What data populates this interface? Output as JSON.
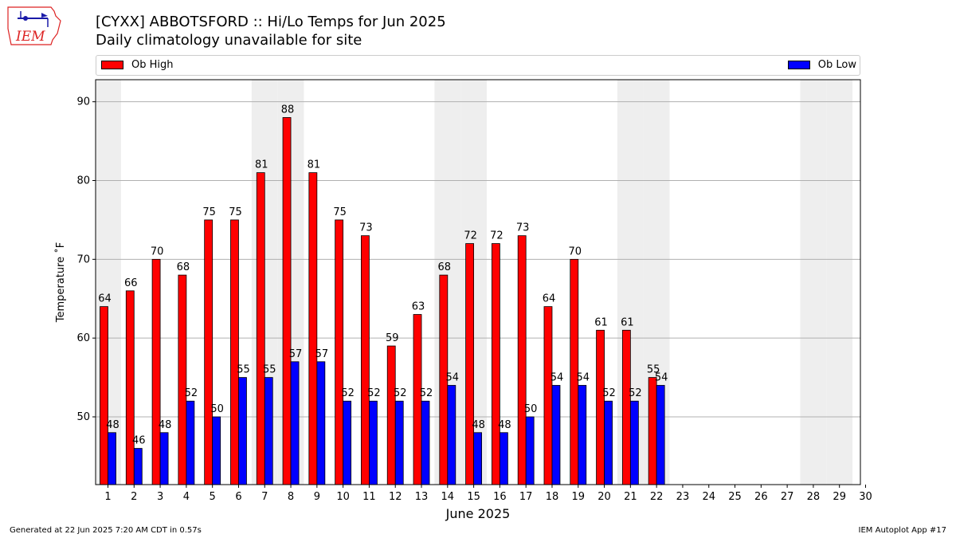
{
  "logo": {
    "text": "IEM",
    "icon": "iowa-state-weather-logo-icon"
  },
  "title": "[CYXX] ABBOTSFORD :: Hi/Lo Temps for Jun 2025",
  "subtitle": "Daily climatology unavailable for site",
  "footer": {
    "left": "Generated at 22 Jun 2025 7:20 AM CDT in 0.57s",
    "right": "IEM Autoplot App #17"
  },
  "chart_data": {
    "type": "bar",
    "title": "[CYXX] ABBOTSFORD :: Hi/Lo Temps for Jun 2025",
    "xlabel": "June 2025",
    "ylabel": "Temperature ˚F",
    "categories": [
      "1",
      "2",
      "3",
      "4",
      "5",
      "6",
      "7",
      "8",
      "9",
      "10",
      "11",
      "12",
      "13",
      "14",
      "15",
      "16",
      "17",
      "18",
      "19",
      "20",
      "21",
      "22",
      "23",
      "24",
      "25",
      "26",
      "27",
      "28",
      "29",
      "30"
    ],
    "series": [
      {
        "name": "Ob High",
        "color": "#ff0000",
        "values": [
          64,
          66,
          70,
          68,
          75,
          75,
          81,
          88,
          81,
          75,
          73,
          59,
          63,
          68,
          72,
          72,
          73,
          64,
          70,
          61,
          61,
          55,
          null,
          null,
          null,
          null,
          null,
          null,
          null,
          null
        ]
      },
      {
        "name": "Ob Low",
        "color": "#0000ff",
        "values": [
          48,
          46,
          48,
          52,
          50,
          55,
          55,
          57,
          57,
          52,
          52,
          52,
          52,
          54,
          48,
          48,
          50,
          54,
          54,
          52,
          52,
          54,
          null,
          null,
          null,
          null,
          null,
          null,
          null,
          null
        ]
      }
    ],
    "yticks": [
      50,
      60,
      70,
      80,
      90
    ],
    "ylim": [
      41.4,
      92.8
    ],
    "weekend_shading_days": [
      1,
      7,
      8,
      14,
      15,
      21,
      22,
      28,
      29
    ],
    "grid": "y",
    "legend_placement": "top"
  }
}
